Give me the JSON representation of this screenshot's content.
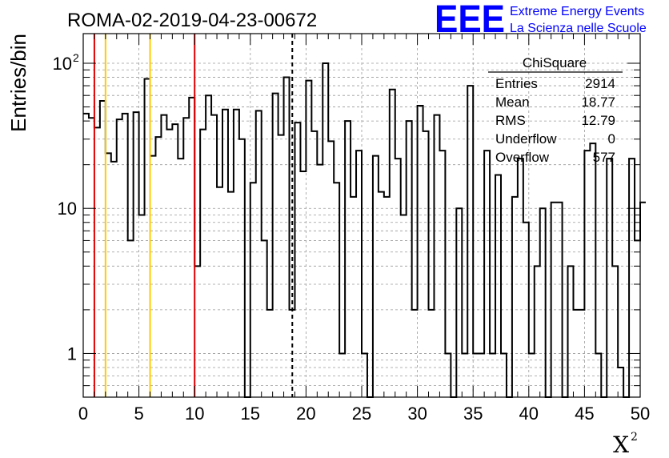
{
  "run_title": "ROMA-02-2019-04-23-00672",
  "logo": {
    "letters": "EEE",
    "line1": "Extreme Energy Events",
    "line2": "La Scienza nelle Scuole",
    "color": "#0000ff"
  },
  "stats_box": {
    "title": "ChiSquare",
    "rows": [
      {
        "label": "Entries",
        "value": "2914"
      },
      {
        "label": "Mean",
        "value": "18.77"
      },
      {
        "label": "RMS",
        "value": "12.79"
      },
      {
        "label": "Underflow",
        "value": "0"
      },
      {
        "label": "Overflow",
        "value": "577"
      }
    ]
  },
  "chart_data": {
    "type": "bar",
    "style": "step-histogram",
    "title": "ROMA-02-2019-04-23-00672",
    "xlabel": "X",
    "xlabel_superscript": "2",
    "ylabel": "Entries/bin",
    "xlim": [
      0,
      50
    ],
    "ylim": [
      0.5,
      160
    ],
    "yscale": "log",
    "grid": true,
    "bin_width": 0.5,
    "x_ticks": [
      "0",
      "5",
      "10",
      "15",
      "20",
      "25",
      "30",
      "35",
      "40",
      "45",
      "50"
    ],
    "y_ticks": [
      {
        "value": 1,
        "label": "1"
      },
      {
        "value": 10,
        "label": "10"
      },
      {
        "value": 100,
        "label": "10",
        "exp": "2"
      }
    ],
    "values": [
      45,
      42,
      36,
      55,
      24,
      21,
      41,
      45,
      6,
      46,
      9,
      78,
      23,
      31,
      44,
      35,
      38,
      22,
      42,
      58,
      4,
      35,
      60,
      44,
      14,
      48,
      13,
      48,
      30,
      0.5,
      15,
      47,
      6,
      2,
      62,
      32,
      80,
      2,
      39,
      18,
      76,
      34,
      20,
      100,
      29,
      15,
      1,
      40,
      12,
      25,
      1,
      0.5,
      23,
      13,
      12,
      66,
      22,
      9,
      40,
      2,
      51,
      34,
      2,
      44,
      25,
      1,
      0.5,
      10,
      1,
      70,
      1,
      1,
      25,
      1,
      17,
      1,
      0.5,
      12,
      22,
      8,
      1,
      4,
      10,
      0.5,
      11,
      11,
      0.5,
      4,
      2,
      2,
      25,
      28,
      1,
      0.5,
      22,
      4,
      0.8,
      0.5,
      22,
      6,
      11
    ],
    "vlines": [
      {
        "x": 1,
        "color": "#e00000",
        "style": "solid"
      },
      {
        "x": 2,
        "color": "#ffcc00",
        "style": "solid"
      },
      {
        "x": 6,
        "color": "#ffcc00",
        "style": "solid"
      },
      {
        "x": 10,
        "color": "#e00000",
        "style": "solid"
      },
      {
        "x": 18.77,
        "color": "#000000",
        "style": "dashed"
      }
    ]
  }
}
